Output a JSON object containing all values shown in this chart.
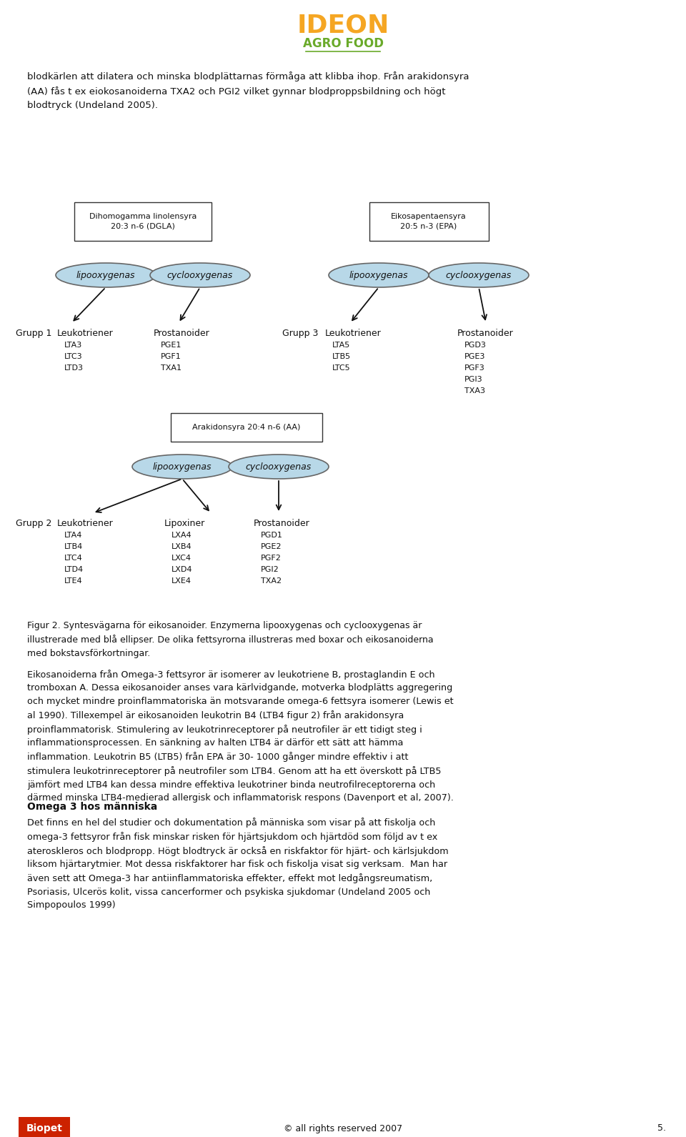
{
  "bg_color": "#ffffff",
  "page_width": 9.6,
  "page_height": 15.91,
  "logo_text_ideon": "IDEON",
  "logo_text_agrofood": "AGRO FOOD",
  "intro_text": "blodkärlen att dilatera och minska blodplättarnas förmåga att klibba ihop. Från arakidonsyra\n(AA) fås t ex eiokosanoiderna TXA2 och PGI2 vilket gynnar blodproppsbildning och högt\nblodtryck (Undeland 2005).",
  "box1_label": "Dihomogamma linolensyra\n20:3 n-6 (DGLA)",
  "box2_label": "Eikosapentaensyra\n20:5 n-3 (EPA)",
  "box3_label": "Arakidonsyra 20:4 n-6 (AA)",
  "ellipse_color": "#b8d8e8",
  "ellipse_edge": "#666666",
  "grupp1_label": "Grupp 1",
  "grupp2_label": "Grupp 2",
  "grupp3_label": "Grupp 3",
  "g1_leuko_title": "Leukotriener",
  "g1_leuko_items": [
    "LTA3",
    "LTC3",
    "LTD3"
  ],
  "g1_prosta_title": "Prostanoider",
  "g1_prosta_items": [
    "PGE1",
    "PGF1",
    "TXA1"
  ],
  "g3_leuko_title": "Leukotriener",
  "g3_leuko_items": [
    "LTA5",
    "LTB5",
    "LTC5"
  ],
  "g3_prosta_title": "Prostanoider",
  "g3_prosta_items": [
    "PGD3",
    "PGE3",
    "PGF3",
    "PGI3",
    "TXA3"
  ],
  "g2_leuko_title": "Leukotriener",
  "g2_leuko_items": [
    "LTA4",
    "LTB4",
    "LTC4",
    "LTD4",
    "LTE4"
  ],
  "g2_lipox_title": "Lipoxiner",
  "g2_lipox_items": [
    "LXA4",
    "LXB4",
    "LXC4",
    "LXD4",
    "LXE4"
  ],
  "g2_prosta_title": "Prostanoider",
  "g2_prosta_items": [
    "PGD1",
    "PGE2",
    "PGF2",
    "PGI2",
    "TXA2"
  ],
  "figur_caption_bold": "Figur 2.",
  "figur_caption_normal": " Syntesvägarna för eikosanoider.",
  "figur_caption_rest": " Enzymerna lipooxygenas och cyclooxygenas är\nillustrerade med blå ellipser. De olika fettsyrorna illustreras med boxar och eikosanoiderna\nmed bokstavsförkortningar.",
  "body_text1": "Eikosanoiderna från Omega-3 fettsyror är isomerer av leukotriene B, prostaglandin E och\ntromboxan A. Dessa eikosanoider anses vara kärlvidgande, motverka blodplätts aggregering\noch mycket mindre proinflammatoriska än motsvarande omega-6 fettsyra isomerer (Lewis et\nal 1990). Tillexempel är eikosanoiden leukotrin B4 (LTB4 figur 2) från arakidonsyra\nproinflammatorisk. Stimulering av leukotrinreceptorer på neutrofiler är ett tidigt steg i\ninflammationsprocessen. En sänkning av halten LTB4 är därför ett sätt att hämma\ninflammation. Leukotrin B5 (LTB5) från EPA är 30- 1000 gånger mindre effektiv i att\nstimulera leukotrinreceptorer på neutrofiler som LTB4. Genom att ha ett överskott på LTB5\njämfört med LTB4 kan dessa mindre effektiva leukotriner binda neutrofilreceptorerna och\ndärmed minska LTB4-medierad allergisk och inflammatorisk respons (Davenport et al, 2007).",
  "heading2": "Omega 3 hos människa",
  "body_text2": "Det finns en hel del studier och dokumentation på människa som visar på att fiskolja och\nomega-3 fettsyror från fisk minskar risken för hjärtsjukdom och hjärtdöd som följd av t ex\nateroskleros och blodpropp. Högt blodtryck är också en riskfaktor för hjärt- och kärlsjukdom\nliksom hjärtarytmier. Mot dessa riskfaktorer har fisk och fiskolja visat sig verksam.  Man har\näven sett att Omega-3 har antiinflammatoriska effekter, effekt mot ledgångsreumatism,\nPsoriasis, Ulcerös kolit, vissa cancerformer och psykiska sjukdomar (Undeland 2005 och\nSimpopoulos 1999)",
  "footer_copyright": "© all rights reserved 2007",
  "footer_page": "5."
}
